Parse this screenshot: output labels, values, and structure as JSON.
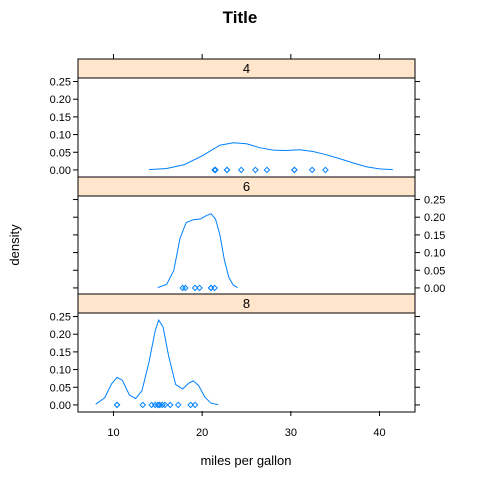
{
  "chart_data": {
    "type": "density",
    "title": "Title",
    "xlabel": "miles per gallon",
    "ylabel": "density",
    "xlim": [
      6,
      44
    ],
    "ylim": [
      -0.02,
      0.26
    ],
    "x_ticks": [
      10,
      20,
      30,
      40
    ],
    "y_ticks": [
      0.0,
      0.05,
      0.1,
      0.15,
      0.2,
      0.25
    ],
    "y_tick_labels": [
      "0.00",
      "0.05",
      "0.10",
      "0.15",
      "0.20",
      "0.25"
    ],
    "colors": {
      "line": "#0080ff",
      "strip_fill": "#ffe5cc",
      "frame": "#000000"
    },
    "panels": [
      {
        "label": "4",
        "density": [
          [
            14.0,
            0.001
          ],
          [
            16.0,
            0.004
          ],
          [
            18.0,
            0.015
          ],
          [
            20.0,
            0.04
          ],
          [
            22.0,
            0.07
          ],
          [
            23.5,
            0.077
          ],
          [
            25.0,
            0.074
          ],
          [
            26.5,
            0.063
          ],
          [
            28.0,
            0.056
          ],
          [
            29.5,
            0.055
          ],
          [
            31.0,
            0.057
          ],
          [
            32.5,
            0.052
          ],
          [
            34.0,
            0.043
          ],
          [
            35.5,
            0.032
          ],
          [
            37.0,
            0.02
          ],
          [
            38.5,
            0.009
          ],
          [
            40.0,
            0.003
          ],
          [
            41.5,
            0.001
          ]
        ],
        "points": [
          22.8,
          24.4,
          22.8,
          32.4,
          30.4,
          33.9,
          21.5,
          27.3,
          26.0,
          30.4,
          21.4
        ]
      },
      {
        "label": "6",
        "density": [
          [
            15.0,
            0.001
          ],
          [
            16.0,
            0.01
          ],
          [
            16.8,
            0.05
          ],
          [
            17.5,
            0.14
          ],
          [
            18.2,
            0.185
          ],
          [
            19.0,
            0.193
          ],
          [
            19.8,
            0.195
          ],
          [
            20.5,
            0.205
          ],
          [
            21.0,
            0.21
          ],
          [
            21.5,
            0.195
          ],
          [
            22.0,
            0.15
          ],
          [
            22.5,
            0.08
          ],
          [
            23.0,
            0.03
          ],
          [
            23.5,
            0.008
          ],
          [
            24.0,
            0.001
          ]
        ],
        "points": [
          21.0,
          21.0,
          21.4,
          18.1,
          19.2,
          17.8,
          19.7
        ]
      },
      {
        "label": "8",
        "density": [
          [
            8.0,
            0.002
          ],
          [
            9.0,
            0.02
          ],
          [
            9.8,
            0.06
          ],
          [
            10.4,
            0.078
          ],
          [
            11.0,
            0.07
          ],
          [
            11.8,
            0.028
          ],
          [
            12.5,
            0.018
          ],
          [
            13.2,
            0.04
          ],
          [
            14.0,
            0.12
          ],
          [
            14.7,
            0.21
          ],
          [
            15.1,
            0.24
          ],
          [
            15.6,
            0.22
          ],
          [
            16.2,
            0.14
          ],
          [
            17.0,
            0.058
          ],
          [
            17.8,
            0.045
          ],
          [
            18.5,
            0.062
          ],
          [
            19.0,
            0.068
          ],
          [
            19.6,
            0.055
          ],
          [
            20.3,
            0.022
          ],
          [
            21.0,
            0.005
          ],
          [
            21.8,
            0.001
          ]
        ],
        "points": [
          18.7,
          14.3,
          16.4,
          17.3,
          15.2,
          10.4,
          10.4,
          14.7,
          15.5,
          15.2,
          13.3,
          19.2,
          15.8,
          15.0
        ]
      }
    ]
  }
}
